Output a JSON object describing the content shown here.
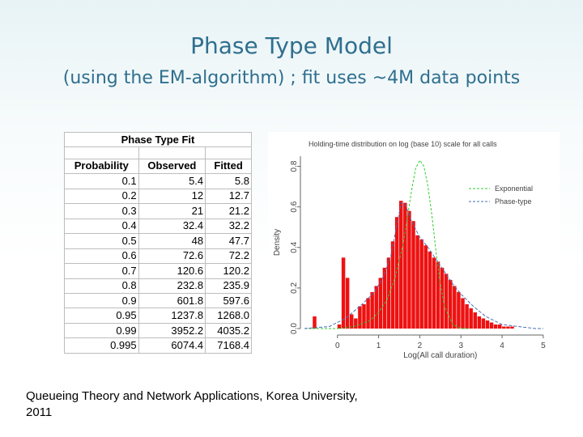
{
  "slide": {
    "title": "Phase Type Model",
    "subtitle": "(using the EM-algorithm) ; fit uses ~4M data points",
    "footer_line1": "Queueing Theory and Network Applications, Korea University,",
    "footer_line2": "2011"
  },
  "table": {
    "title": "Phase Type Fit",
    "headers": [
      "Probability",
      "Observed",
      "Fitted"
    ],
    "rows": [
      [
        "0.1",
        "5.4",
        "5.8"
      ],
      [
        "0.2",
        "12",
        "12.7"
      ],
      [
        "0.3",
        "21",
        "21.2"
      ],
      [
        "0.4",
        "32.4",
        "32.2"
      ],
      [
        "0.5",
        "48",
        "47.7"
      ],
      [
        "0.6",
        "72.6",
        "72.2"
      ],
      [
        "0.7",
        "120.6",
        "120.2"
      ],
      [
        "0.8",
        "232.8",
        "235.9"
      ],
      [
        "0.9",
        "601.8",
        "597.6"
      ],
      [
        "0.95",
        "1237.8",
        "1268.0"
      ],
      [
        "0.99",
        "3952.2",
        "4035.2"
      ],
      [
        "0.995",
        "6074.4",
        "7168.4"
      ]
    ]
  },
  "chart_data": {
    "type": "bar",
    "title": "Holding-time distribution on log (base 10) scale for all calls",
    "xlabel": "Log(All call duration)",
    "ylabel": "Density",
    "xlim": [
      -0.9,
      5.1
    ],
    "ylim": [
      0,
      0.85
    ],
    "xticks": [
      "0",
      "1",
      "2",
      "3",
      "4",
      "5"
    ],
    "yticks": [
      "0.0",
      "0.2",
      "0.4",
      "0.6",
      "0.8"
    ],
    "legend_position": "top-right",
    "histogram": {
      "bin_width": 0.1,
      "x": [
        -0.55,
        -0.45,
        -0.35,
        -0.25,
        -0.15,
        -0.05,
        0.05,
        0.15,
        0.25,
        0.35,
        0.45,
        0.55,
        0.65,
        0.75,
        0.85,
        0.95,
        1.05,
        1.15,
        1.25,
        1.35,
        1.45,
        1.55,
        1.65,
        1.75,
        1.85,
        1.95,
        2.05,
        2.15,
        2.25,
        2.35,
        2.45,
        2.55,
        2.65,
        2.75,
        2.85,
        2.95,
        3.05,
        3.15,
        3.25,
        3.35,
        3.45,
        3.55,
        3.65,
        3.75,
        3.85,
        3.95,
        4.05,
        4.15,
        4.25,
        4.35
      ],
      "values": [
        0.06,
        0.0,
        0.0,
        0.0,
        0.0,
        0.0,
        0.02,
        0.35,
        0.25,
        0.07,
        0.05,
        0.11,
        0.12,
        0.15,
        0.18,
        0.21,
        0.25,
        0.3,
        0.35,
        0.43,
        0.55,
        0.63,
        0.62,
        0.58,
        0.53,
        0.46,
        0.44,
        0.41,
        0.38,
        0.35,
        0.33,
        0.3,
        0.27,
        0.24,
        0.21,
        0.18,
        0.15,
        0.12,
        0.1,
        0.08,
        0.06,
        0.05,
        0.04,
        0.03,
        0.02,
        0.02,
        0.01,
        0.01,
        0.01,
        0.0
      ]
    },
    "series": [
      {
        "name": "Exponential",
        "color": "#33cc33",
        "x": [
          -0.8,
          -0.4,
          0.0,
          0.4,
          0.8,
          1.0,
          1.2,
          1.4,
          1.6,
          1.7,
          1.8,
          1.9,
          2.0,
          2.1,
          2.2,
          2.3,
          2.4,
          2.5,
          2.6,
          2.8,
          3.0,
          3.2
        ],
        "values": [
          0.0,
          0.0,
          0.0,
          0.01,
          0.04,
          0.08,
          0.14,
          0.25,
          0.42,
          0.55,
          0.68,
          0.79,
          0.83,
          0.8,
          0.7,
          0.55,
          0.37,
          0.22,
          0.11,
          0.02,
          0.0,
          0.0
        ]
      },
      {
        "name": "Phase-type",
        "color": "#4a6fb5",
        "x": [
          -0.8,
          -0.2,
          0.2,
          0.6,
          0.9,
          1.1,
          1.3,
          1.45,
          1.55,
          1.65,
          1.8,
          2.0,
          2.2,
          2.4,
          2.6,
          2.8,
          3.0,
          3.3,
          3.6,
          4.0,
          4.4,
          4.8,
          5.0
        ],
        "values": [
          0.0,
          0.01,
          0.05,
          0.12,
          0.18,
          0.25,
          0.36,
          0.52,
          0.62,
          0.61,
          0.53,
          0.45,
          0.4,
          0.34,
          0.28,
          0.22,
          0.17,
          0.11,
          0.06,
          0.02,
          0.01,
          0.0,
          0.0
        ]
      }
    ]
  }
}
